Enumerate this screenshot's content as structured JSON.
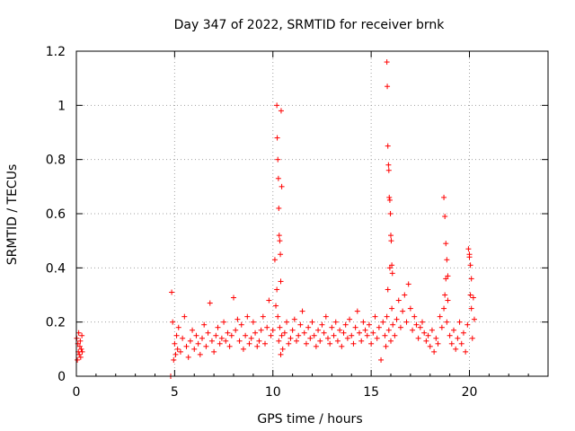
{
  "chart_data": {
    "type": "scatter",
    "title": "Day 347 of 2022, SRMTID for receiver brnk",
    "xlabel": "GPS time / hours",
    "ylabel": "SRMTID / TECUs",
    "xlim": [
      0,
      24
    ],
    "ylim": [
      0,
      1.2
    ],
    "xticks": [
      0,
      5,
      10,
      15,
      20
    ],
    "yticks": [
      0,
      0.2,
      0.4,
      0.6,
      0.8,
      1,
      1.2
    ],
    "xtick_labels": [
      "0",
      "5",
      "10",
      "15",
      "20"
    ],
    "ytick_labels": [
      "0",
      "0.2",
      "0.4",
      "0.6",
      "0.8",
      "1",
      "1.2"
    ],
    "grid": true,
    "marker": "+",
    "series": [
      {
        "name": "SRMTID",
        "color": "#ff0000",
        "x": [
          0.02,
          0.05,
          0.08,
          0.1,
          0.12,
          0.15,
          0.18,
          0.2,
          0.22,
          0.25,
          0.28,
          0.3,
          4.8,
          4.85,
          4.9,
          4.95,
          5.0,
          5.05,
          5.1,
          5.15,
          5.2,
          5.3,
          5.4,
          5.5,
          5.6,
          5.7,
          5.8,
          5.9,
          6.0,
          6.1,
          6.2,
          6.3,
          6.4,
          6.5,
          6.6,
          6.7,
          6.8,
          6.9,
          7.0,
          7.1,
          7.2,
          7.3,
          7.4,
          7.5,
          7.6,
          7.7,
          7.8,
          7.9,
          8.0,
          8.1,
          8.2,
          8.3,
          8.4,
          8.5,
          8.6,
          8.7,
          8.8,
          8.9,
          9.0,
          9.1,
          9.2,
          9.3,
          9.4,
          9.5,
          9.6,
          9.7,
          9.8,
          9.9,
          10.0,
          10.1,
          10.15,
          10.2,
          10.25,
          10.3,
          10.35,
          10.4,
          10.45,
          10.5,
          10.6,
          10.7,
          10.8,
          10.9,
          11.0,
          11.1,
          11.2,
          11.3,
          11.4,
          11.5,
          11.6,
          11.7,
          11.8,
          11.9,
          12.0,
          12.1,
          12.2,
          12.3,
          12.4,
          12.5,
          12.6,
          12.7,
          12.8,
          12.9,
          13.0,
          13.1,
          13.2,
          13.3,
          13.4,
          13.5,
          13.6,
          13.7,
          13.8,
          13.9,
          14.0,
          14.1,
          14.2,
          14.3,
          14.4,
          14.5,
          14.6,
          14.7,
          14.8,
          14.9,
          15.0,
          15.1,
          15.2,
          15.3,
          15.4,
          15.5,
          15.6,
          15.7,
          15.75,
          15.8,
          15.85,
          15.9,
          15.95,
          16.0,
          16.05,
          16.1,
          16.2,
          16.3,
          16.4,
          16.5,
          16.6,
          16.7,
          16.8,
          16.9,
          17.0,
          17.1,
          17.2,
          17.3,
          17.4,
          17.5,
          17.6,
          17.7,
          17.8,
          17.9,
          18.0,
          18.1,
          18.2,
          18.3,
          18.4,
          18.5,
          18.6,
          18.7,
          18.75,
          18.8,
          18.85,
          18.9,
          19.0,
          19.1,
          19.2,
          19.3,
          19.4,
          19.5,
          19.6,
          19.7,
          19.8,
          19.9,
          20.0,
          20.05,
          20.1,
          20.15,
          20.2,
          20.25,
          10.2,
          10.22,
          10.25,
          10.28,
          10.3,
          10.32,
          10.35,
          10.38,
          10.4,
          10.42,
          10.45,
          15.8,
          15.82,
          15.85,
          15.88,
          15.9,
          15.92,
          15.95,
          15.98,
          16.0,
          16.02,
          16.05,
          16.08,
          18.7,
          18.75,
          18.8,
          18.85,
          18.9,
          19.95,
          20.0,
          20.05,
          20.1
        ],
        "y": [
          0.14,
          0.06,
          0.12,
          0.09,
          0.16,
          0.08,
          0.11,
          0.13,
          0.07,
          0.1,
          0.15,
          0.09,
          0.0,
          0.31,
          0.2,
          0.06,
          0.12,
          0.08,
          0.15,
          0.1,
          0.18,
          0.09,
          0.14,
          0.22,
          0.11,
          0.07,
          0.13,
          0.17,
          0.1,
          0.15,
          0.12,
          0.08,
          0.14,
          0.19,
          0.11,
          0.16,
          0.27,
          0.13,
          0.09,
          0.15,
          0.18,
          0.12,
          0.14,
          0.2,
          0.13,
          0.16,
          0.11,
          0.15,
          0.29,
          0.17,
          0.21,
          0.13,
          0.19,
          0.1,
          0.15,
          0.22,
          0.12,
          0.14,
          0.2,
          0.16,
          0.11,
          0.13,
          0.17,
          0.22,
          0.12,
          0.18,
          0.28,
          0.15,
          0.17,
          0.43,
          0.26,
          0.32,
          0.22,
          0.13,
          0.18,
          0.08,
          0.15,
          0.1,
          0.16,
          0.2,
          0.12,
          0.14,
          0.17,
          0.21,
          0.13,
          0.15,
          0.19,
          0.24,
          0.16,
          0.12,
          0.18,
          0.14,
          0.2,
          0.15,
          0.11,
          0.17,
          0.13,
          0.19,
          0.16,
          0.22,
          0.14,
          0.12,
          0.18,
          0.15,
          0.2,
          0.13,
          0.17,
          0.11,
          0.16,
          0.19,
          0.14,
          0.21,
          0.15,
          0.12,
          0.18,
          0.24,
          0.16,
          0.13,
          0.2,
          0.17,
          0.15,
          0.19,
          0.12,
          0.16,
          0.22,
          0.14,
          0.18,
          0.06,
          0.2,
          0.15,
          0.11,
          0.22,
          0.32,
          0.17,
          0.4,
          0.13,
          0.25,
          0.19,
          0.15,
          0.21,
          0.28,
          0.18,
          0.24,
          0.3,
          0.2,
          0.34,
          0.25,
          0.17,
          0.22,
          0.19,
          0.14,
          0.18,
          0.2,
          0.16,
          0.13,
          0.15,
          0.11,
          0.17,
          0.09,
          0.14,
          0.12,
          0.22,
          0.18,
          0.25,
          0.3,
          0.36,
          0.2,
          0.28,
          0.15,
          0.12,
          0.17,
          0.1,
          0.14,
          0.2,
          0.12,
          0.16,
          0.09,
          0.19,
          0.44,
          0.3,
          0.25,
          0.14,
          0.29,
          0.21,
          1.0,
          0.88,
          0.8,
          0.73,
          0.62,
          0.52,
          0.5,
          0.45,
          0.35,
          0.98,
          0.7,
          1.16,
          1.07,
          0.85,
          0.78,
          0.76,
          0.66,
          0.65,
          0.6,
          0.52,
          0.5,
          0.41,
          0.38,
          0.66,
          0.59,
          0.49,
          0.43,
          0.37,
          0.47,
          0.45,
          0.41,
          0.36
        ]
      }
    ]
  }
}
